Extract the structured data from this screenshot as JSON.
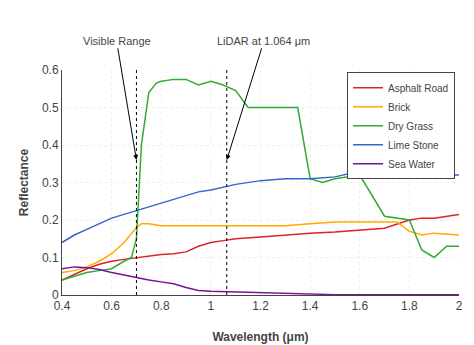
{
  "chart_data": {
    "type": "line",
    "xlabel": "Wavelength (μm)",
    "ylabel": "Reflectance",
    "xlim": [
      0.4,
      2.0
    ],
    "ylim": [
      0,
      0.6
    ],
    "xticks": [
      0.4,
      0.6,
      0.8,
      1,
      1.2,
      1.4,
      1.6,
      1.8,
      2
    ],
    "yticks": [
      0,
      0.1,
      0.2,
      0.3,
      0.4,
      0.5,
      0.6
    ],
    "grid": true,
    "legend": "upper right",
    "annotations": [
      {
        "text": "Visible Range",
        "x": 0.7
      },
      {
        "text": "LiDAR at 1.064 μm",
        "x": 1.064
      }
    ],
    "series": [
      {
        "name": "Asphalt Road",
        "color": "#dd2222",
        "x": [
          0.4,
          0.45,
          0.5,
          0.55,
          0.6,
          0.65,
          0.7,
          0.75,
          0.8,
          0.85,
          0.9,
          0.95,
          1.0,
          1.05,
          1.1,
          1.2,
          1.3,
          1.4,
          1.5,
          1.6,
          1.7,
          1.8,
          1.85,
          1.9,
          2.0
        ],
        "values": [
          0.04,
          0.055,
          0.07,
          0.082,
          0.09,
          0.095,
          0.1,
          0.105,
          0.108,
          0.11,
          0.115,
          0.13,
          0.14,
          0.145,
          0.15,
          0.155,
          0.16,
          0.165,
          0.168,
          0.172,
          0.178,
          0.2,
          0.205,
          0.205,
          0.215
        ]
      },
      {
        "name": "Brick",
        "color": "#ffaa00",
        "x": [
          0.4,
          0.45,
          0.5,
          0.55,
          0.6,
          0.65,
          0.7,
          0.72,
          0.75,
          0.8,
          0.85,
          0.9,
          0.95,
          1.0,
          1.05,
          1.1,
          1.2,
          1.3,
          1.4,
          1.5,
          1.6,
          1.7,
          1.75,
          1.8,
          1.85,
          1.9,
          2.0
        ],
        "values": [
          0.06,
          0.065,
          0.075,
          0.09,
          0.11,
          0.14,
          0.18,
          0.19,
          0.19,
          0.185,
          0.185,
          0.185,
          0.185,
          0.185,
          0.185,
          0.185,
          0.185,
          0.185,
          0.19,
          0.195,
          0.195,
          0.195,
          0.195,
          0.17,
          0.16,
          0.165,
          0.16
        ]
      },
      {
        "name": "Dry Grass",
        "color": "#33aa33",
        "x": [
          0.4,
          0.45,
          0.5,
          0.55,
          0.6,
          0.65,
          0.68,
          0.7,
          0.72,
          0.75,
          0.78,
          0.8,
          0.85,
          0.9,
          0.95,
          1.0,
          1.05,
          1.1,
          1.15,
          1.2,
          1.3,
          1.35,
          1.4,
          1.45,
          1.5,
          1.6,
          1.7,
          1.8,
          1.85,
          1.9,
          1.95,
          2.0
        ],
        "values": [
          0.04,
          0.05,
          0.06,
          0.065,
          0.07,
          0.09,
          0.1,
          0.15,
          0.4,
          0.54,
          0.565,
          0.57,
          0.575,
          0.575,
          0.56,
          0.57,
          0.56,
          0.545,
          0.5,
          0.5,
          0.5,
          0.5,
          0.31,
          0.3,
          0.31,
          0.32,
          0.21,
          0.2,
          0.12,
          0.1,
          0.13,
          0.13
        ]
      },
      {
        "name": "Lime Stone",
        "color": "#3366cc",
        "x": [
          0.4,
          0.45,
          0.5,
          0.55,
          0.6,
          0.65,
          0.7,
          0.75,
          0.8,
          0.85,
          0.9,
          0.95,
          1.0,
          1.1,
          1.2,
          1.3,
          1.4,
          1.5,
          1.6,
          1.65,
          1.7,
          1.75,
          1.8,
          1.85,
          1.9,
          1.95,
          2.0
        ],
        "values": [
          0.14,
          0.16,
          0.175,
          0.19,
          0.205,
          0.215,
          0.225,
          0.235,
          0.245,
          0.255,
          0.265,
          0.275,
          0.28,
          0.295,
          0.305,
          0.31,
          0.31,
          0.315,
          0.33,
          0.335,
          0.338,
          0.335,
          0.33,
          0.325,
          0.32,
          0.32,
          0.32
        ]
      },
      {
        "name": "Sea Water",
        "color": "#771199",
        "x": [
          0.4,
          0.45,
          0.5,
          0.55,
          0.6,
          0.65,
          0.7,
          0.75,
          0.8,
          0.85,
          0.9,
          0.95,
          1.0,
          1.1,
          1.2,
          1.3,
          1.4,
          1.5,
          1.6,
          1.7,
          1.8,
          1.9,
          2.0
        ],
        "values": [
          0.07,
          0.075,
          0.073,
          0.068,
          0.06,
          0.053,
          0.045,
          0.04,
          0.035,
          0.03,
          0.02,
          0.012,
          0.01,
          0.008,
          0.005,
          0.003,
          0.002,
          0.001,
          0.001,
          0.001,
          0.001,
          0.001,
          0.001
        ]
      }
    ]
  }
}
